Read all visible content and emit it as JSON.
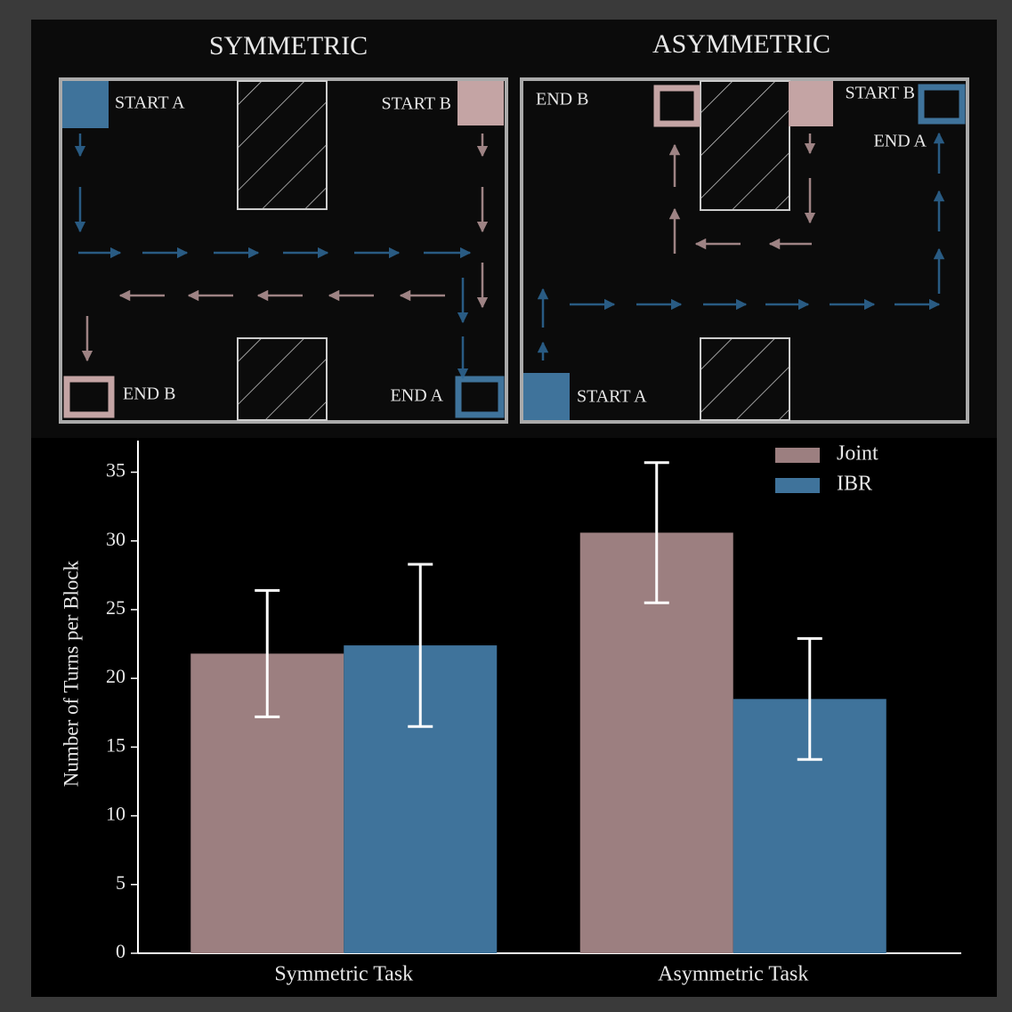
{
  "diagrams": [
    {
      "title": "SYMMETRIC",
      "start_a": "START A",
      "start_b": "START B",
      "end_b": "END B",
      "end_a": "END A"
    },
    {
      "title": "ASYMMETRIC",
      "start_a": "START A",
      "start_b": "START B",
      "end_b": "END B",
      "end_a": "END A"
    }
  ],
  "chart_data": {
    "type": "bar",
    "ylabel": "Number of Turns per Block",
    "categories": [
      "Symmetric Task",
      "Asymmetric Task"
    ],
    "series": [
      {
        "name": "Joint",
        "color": "#9c7f80",
        "values": [
          21.8,
          30.6
        ],
        "errors": [
          4.6,
          5.1
        ]
      },
      {
        "name": "IBR",
        "color": "#3f739b",
        "values": [
          22.4,
          18.5
        ],
        "errors": [
          5.9,
          4.4
        ]
      }
    ],
    "ylim": [
      0,
      37.3
    ],
    "yticks": [
      0,
      5,
      10,
      15,
      20,
      25,
      30,
      35
    ],
    "legend": "upper right"
  }
}
